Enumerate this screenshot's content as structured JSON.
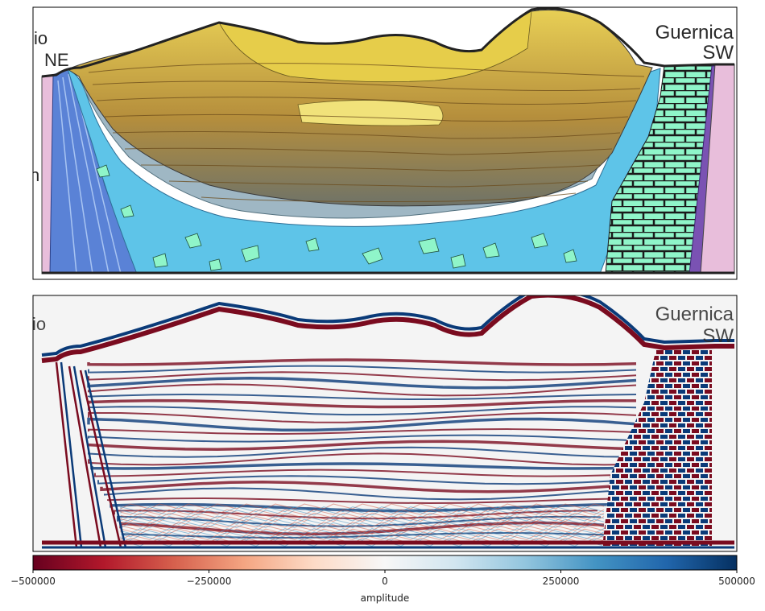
{
  "top_panel": {
    "labels": {
      "left_partial": "io",
      "left_dir": "NE",
      "left_edge": "n",
      "right_name": "Guernica",
      "right_dir": "SW"
    }
  },
  "bottom_panel": {
    "echo_left": "io",
    "echo_right_name": "Guernica",
    "echo_right_dir": "SW"
  },
  "colorbar": {
    "label": "amplitude",
    "min": -500000,
    "max": 500000,
    "ticks": [
      {
        "value": -500000,
        "label": "−500000"
      },
      {
        "value": -250000,
        "label": "−250000"
      },
      {
        "value": 0,
        "label": "0"
      },
      {
        "value": 250000,
        "label": "250000"
      },
      {
        "value": 500000,
        "label": "500000"
      }
    ],
    "colormap": [
      "#67001f",
      "#b2182b",
      "#d6604d",
      "#f4a582",
      "#fddbc7",
      "#f7f7f7",
      "#d1e5f0",
      "#92c5de",
      "#4393c3",
      "#2166ac",
      "#053061"
    ]
  },
  "colors": {
    "sky": "#ffffff",
    "yellow_light": "#f1e27a",
    "yellow": "#e6cd4a",
    "ochre": "#d9a446",
    "tan": "#d4b98d",
    "grey_blue": "#9fb7c4",
    "cyan": "#5ec4e8",
    "mint": "#8ff5c9",
    "blue_fault": "#5a82d6",
    "pink": "#e8bedb",
    "purple": "#7a52b3",
    "brick_line": "#1a1a1a",
    "seis_red": "#7a0b1f",
    "seis_blue": "#0a3a78"
  }
}
